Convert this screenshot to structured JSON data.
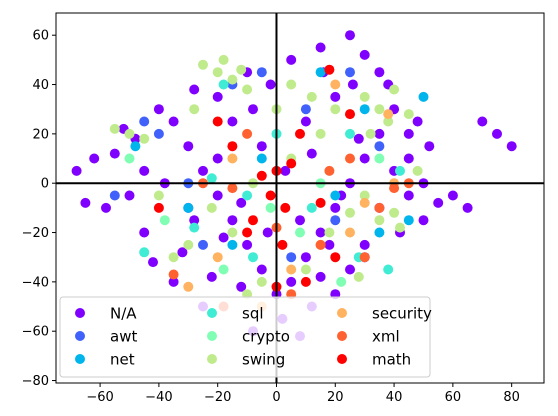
{
  "chart_data": {
    "type": "scatter",
    "title": "",
    "xlabel": "",
    "ylabel": "",
    "xlim": [
      -75,
      91
    ],
    "ylim": [
      -81,
      69
    ],
    "x_ticks": [
      -60,
      -40,
      -20,
      0,
      20,
      40,
      60,
      80
    ],
    "y_ticks": [
      -80,
      -60,
      -40,
      -20,
      0,
      20,
      40,
      60
    ],
    "x_tick_labels": [
      "−60",
      "−40",
      "−20",
      "0",
      "20",
      "40",
      "60",
      "80"
    ],
    "y_tick_labels": [
      "−80",
      "−60",
      "−40",
      "−20",
      "0",
      "20",
      "40",
      "60"
    ],
    "reference_lines": {
      "x": 0,
      "y": 0
    },
    "grid": false,
    "legend": {
      "placement": "bottom-left",
      "columns": 3
    },
    "series": [
      {
        "name": "N/A",
        "color": "#8000ff",
        "points": [
          [
            -62,
            10
          ],
          [
            -55,
            12
          ],
          [
            -48,
            18
          ],
          [
            -40,
            30
          ],
          [
            -35,
            25
          ],
          [
            -30,
            15
          ],
          [
            -25,
            5
          ],
          [
            -20,
            -5
          ],
          [
            -15,
            -15
          ],
          [
            -10,
            -25
          ],
          [
            -5,
            -35
          ],
          [
            0,
            -45
          ],
          [
            5,
            -40
          ],
          [
            10,
            -30
          ],
          [
            15,
            -20
          ],
          [
            20,
            -10
          ],
          [
            25,
            0
          ],
          [
            30,
            10
          ],
          [
            35,
            20
          ],
          [
            40,
            30
          ],
          [
            45,
            20
          ],
          [
            40,
            5
          ],
          [
            35,
            -10
          ],
          [
            30,
            -25
          ],
          [
            25,
            -35
          ],
          [
            20,
            -45
          ],
          [
            -45,
            -20
          ],
          [
            -50,
            -5
          ],
          [
            -35,
            -40
          ],
          [
            -25,
            -50
          ],
          [
            -20,
            35
          ],
          [
            -10,
            45
          ],
          [
            5,
            50
          ],
          [
            15,
            55
          ],
          [
            25,
            60
          ],
          [
            30,
            52
          ],
          [
            35,
            45
          ],
          [
            20,
            35
          ],
          [
            10,
            25
          ],
          [
            -5,
            15
          ],
          [
            -15,
            25
          ],
          [
            -28,
            38
          ],
          [
            -58,
            -10
          ],
          [
            -65,
            -8
          ],
          [
            -68,
            5
          ],
          [
            -42,
            -32
          ],
          [
            -32,
            -28
          ],
          [
            -22,
            -38
          ],
          [
            -12,
            -42
          ],
          [
            2,
            -55
          ],
          [
            -8,
            -60
          ],
          [
            8,
            -62
          ],
          [
            12,
            -50
          ],
          [
            45,
            -5
          ],
          [
            50,
            0
          ],
          [
            55,
            -8
          ],
          [
            60,
            -5
          ],
          [
            70,
            25
          ],
          [
            75,
            20
          ],
          [
            80,
            15
          ],
          [
            65,
            -10
          ],
          [
            50,
            -15
          ],
          [
            42,
            -20
          ],
          [
            38,
            40
          ],
          [
            48,
            25
          ],
          [
            52,
            15
          ],
          [
            45,
            10
          ],
          [
            30,
            -30
          ],
          [
            15,
            -38
          ],
          [
            -38,
            0
          ],
          [
            -45,
            5
          ],
          [
            -52,
            22
          ],
          [
            -30,
            -10
          ],
          [
            -20,
            10
          ],
          [
            -12,
            -8
          ],
          [
            3,
            5
          ],
          [
            12,
            12
          ],
          [
            22,
            -5
          ],
          [
            28,
            18
          ],
          [
            -8,
            30
          ],
          [
            -2,
            40
          ],
          [
            16,
            45
          ],
          [
            26,
            40
          ],
          [
            18,
            -25
          ],
          [
            8,
            -15
          ],
          [
            -3,
            -20
          ],
          [
            -18,
            -22
          ],
          [
            -28,
            -15
          ]
        ]
      },
      {
        "name": "awt",
        "color": "#4062fa",
        "points": [
          [
            -40,
            20
          ],
          [
            -15,
            40
          ],
          [
            -5,
            45
          ],
          [
            10,
            30
          ],
          [
            -25,
            -25
          ],
          [
            20,
            -15
          ],
          [
            35,
            15
          ],
          [
            -55,
            -5
          ],
          [
            -45,
            25
          ],
          [
            5,
            -30
          ],
          [
            -30,
            0
          ],
          [
            25,
            45
          ]
        ]
      },
      {
        "name": "net",
        "color": "#00b5eb",
        "points": [
          [
            50,
            35
          ],
          [
            45,
            -15
          ],
          [
            -30,
            -10
          ],
          [
            -15,
            -25
          ],
          [
            15,
            45
          ],
          [
            -5,
            10
          ],
          [
            20,
            -5
          ],
          [
            35,
            -20
          ],
          [
            -48,
            15
          ],
          [
            30,
            30
          ]
        ]
      },
      {
        "name": "sql",
        "color": "#40ecd4",
        "points": [
          [
            -22,
            2
          ],
          [
            -28,
            -18
          ],
          [
            -8,
            -30
          ],
          [
            12,
            -10
          ],
          [
            28,
            -30
          ],
          [
            42,
            5
          ],
          [
            -45,
            -28
          ],
          [
            0,
            20
          ],
          [
            -18,
            40
          ],
          [
            38,
            -35
          ],
          [
            25,
            20
          ],
          [
            -10,
            -5
          ]
        ]
      },
      {
        "name": "crypto",
        "color": "#80ffb4",
        "points": [
          [
            -38,
            -15
          ],
          [
            -18,
            -35
          ],
          [
            8,
            -20
          ],
          [
            35,
            10
          ],
          [
            -50,
            10
          ],
          [
            22,
            -40
          ],
          [
            -2,
            -10
          ],
          [
            15,
            0
          ]
        ]
      },
      {
        "name": "swing",
        "color": "#c0eb8d",
        "points": [
          [
            -25,
            48
          ],
          [
            -20,
            45
          ],
          [
            -15,
            42
          ],
          [
            -10,
            38
          ],
          [
            -12,
            46
          ],
          [
            -18,
            50
          ],
          [
            20,
            30
          ],
          [
            25,
            28
          ],
          [
            30,
            35
          ],
          [
            35,
            30
          ],
          [
            -55,
            22
          ],
          [
            -50,
            20
          ],
          [
            -45,
            18
          ],
          [
            40,
            -12
          ],
          [
            42,
            -18
          ],
          [
            35,
            -15
          ],
          [
            -5,
            -40
          ],
          [
            -10,
            -45
          ],
          [
            15,
            20
          ],
          [
            5,
            40
          ],
          [
            40,
            38
          ],
          [
            30,
            -5
          ],
          [
            -35,
            -30
          ],
          [
            -30,
            -25
          ],
          [
            10,
            -35
          ],
          [
            0,
            30
          ],
          [
            45,
            28
          ],
          [
            38,
            25
          ],
          [
            -22,
            -10
          ],
          [
            18,
            -20
          ],
          [
            25,
            -12
          ],
          [
            -40,
            -5
          ],
          [
            28,
            -38
          ],
          [
            -8,
            0
          ],
          [
            5,
            10
          ],
          [
            12,
            35
          ],
          [
            -28,
            30
          ],
          [
            32,
            20
          ],
          [
            48,
            5
          ],
          [
            -15,
            -20
          ]
        ]
      },
      {
        "name": "security",
        "color": "#ffb360",
        "points": [
          [
            -15,
            10
          ],
          [
            30,
            -8
          ],
          [
            40,
            0
          ],
          [
            -20,
            -30
          ],
          [
            -30,
            -42
          ],
          [
            5,
            -35
          ],
          [
            15,
            -25
          ],
          [
            20,
            40
          ],
          [
            -5,
            -50
          ],
          [
            25,
            -20
          ],
          [
            38,
            28
          ]
        ]
      },
      {
        "name": "xml",
        "color": "#ff6230",
        "points": [
          [
            -18,
            -50
          ],
          [
            -35,
            -37
          ],
          [
            15,
            -25
          ],
          [
            30,
            -30
          ],
          [
            35,
            -10
          ],
          [
            45,
            0
          ],
          [
            -25,
            0
          ],
          [
            -10,
            20
          ],
          [
            0,
            -18
          ],
          [
            18,
            5
          ],
          [
            25,
            10
          ],
          [
            40,
            -2
          ],
          [
            -15,
            -2
          ],
          [
            5,
            -45
          ]
        ]
      },
      {
        "name": "math",
        "color": "#ff0000",
        "points": [
          [
            -5,
            3
          ],
          [
            0,
            5
          ],
          [
            5,
            8
          ],
          [
            -2,
            -5
          ],
          [
            3,
            -10
          ],
          [
            -10,
            -20
          ],
          [
            20,
            -30
          ],
          [
            25,
            28
          ],
          [
            10,
            -40
          ],
          [
            -20,
            25
          ],
          [
            -15,
            15
          ],
          [
            -40,
            -10
          ],
          [
            18,
            46
          ],
          [
            8,
            20
          ],
          [
            -8,
            -15
          ],
          [
            2,
            -25
          ],
          [
            0,
            -42
          ],
          [
            15,
            -8
          ]
        ]
      }
    ]
  }
}
